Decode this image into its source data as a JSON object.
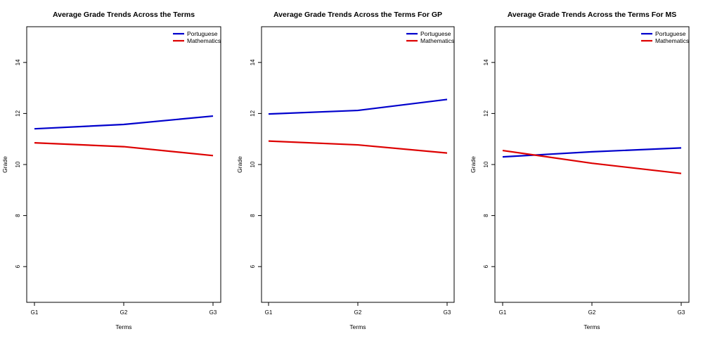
{
  "chart_data": [
    {
      "type": "line",
      "title": "Average Grade Trends Across the Terms",
      "xlabel": "Terms",
      "ylabel": "Grade",
      "categories": [
        "G1",
        "G2",
        "G3"
      ],
      "ylim": [
        4.6,
        15.4
      ],
      "yticks": [
        6,
        8,
        10,
        12,
        14
      ],
      "legend_position": "top-right",
      "series": [
        {
          "name": "Portuguese",
          "color": "#0000cc",
          "values": [
            11.4,
            11.57,
            11.9
          ]
        },
        {
          "name": "Mathematics",
          "color": "#dd0000",
          "values": [
            10.85,
            10.7,
            10.35
          ]
        }
      ]
    },
    {
      "type": "line",
      "title": "Average Grade Trends Across the Terms For GP",
      "xlabel": "Terms",
      "ylabel": "Grade",
      "categories": [
        "G1",
        "G2",
        "G3"
      ],
      "ylim": [
        4.6,
        15.4
      ],
      "yticks": [
        6,
        8,
        10,
        12,
        14
      ],
      "legend_position": "top-right",
      "series": [
        {
          "name": "Portuguese",
          "color": "#0000cc",
          "values": [
            11.98,
            12.12,
            12.55
          ]
        },
        {
          "name": "Mathematics",
          "color": "#dd0000",
          "values": [
            10.92,
            10.77,
            10.45
          ]
        }
      ]
    },
    {
      "type": "line",
      "title": "Average Grade Trends Across the Terms For MS",
      "xlabel": "Terms",
      "ylabel": "Grade",
      "categories": [
        "G1",
        "G2",
        "G3"
      ],
      "ylim": [
        4.6,
        15.4
      ],
      "yticks": [
        6,
        8,
        10,
        12,
        14
      ],
      "legend_position": "top-right",
      "series": [
        {
          "name": "Portuguese",
          "color": "#0000cc",
          "values": [
            10.3,
            10.5,
            10.65
          ]
        },
        {
          "name": "Mathematics",
          "color": "#dd0000",
          "values": [
            10.55,
            10.05,
            9.65
          ]
        }
      ]
    }
  ]
}
